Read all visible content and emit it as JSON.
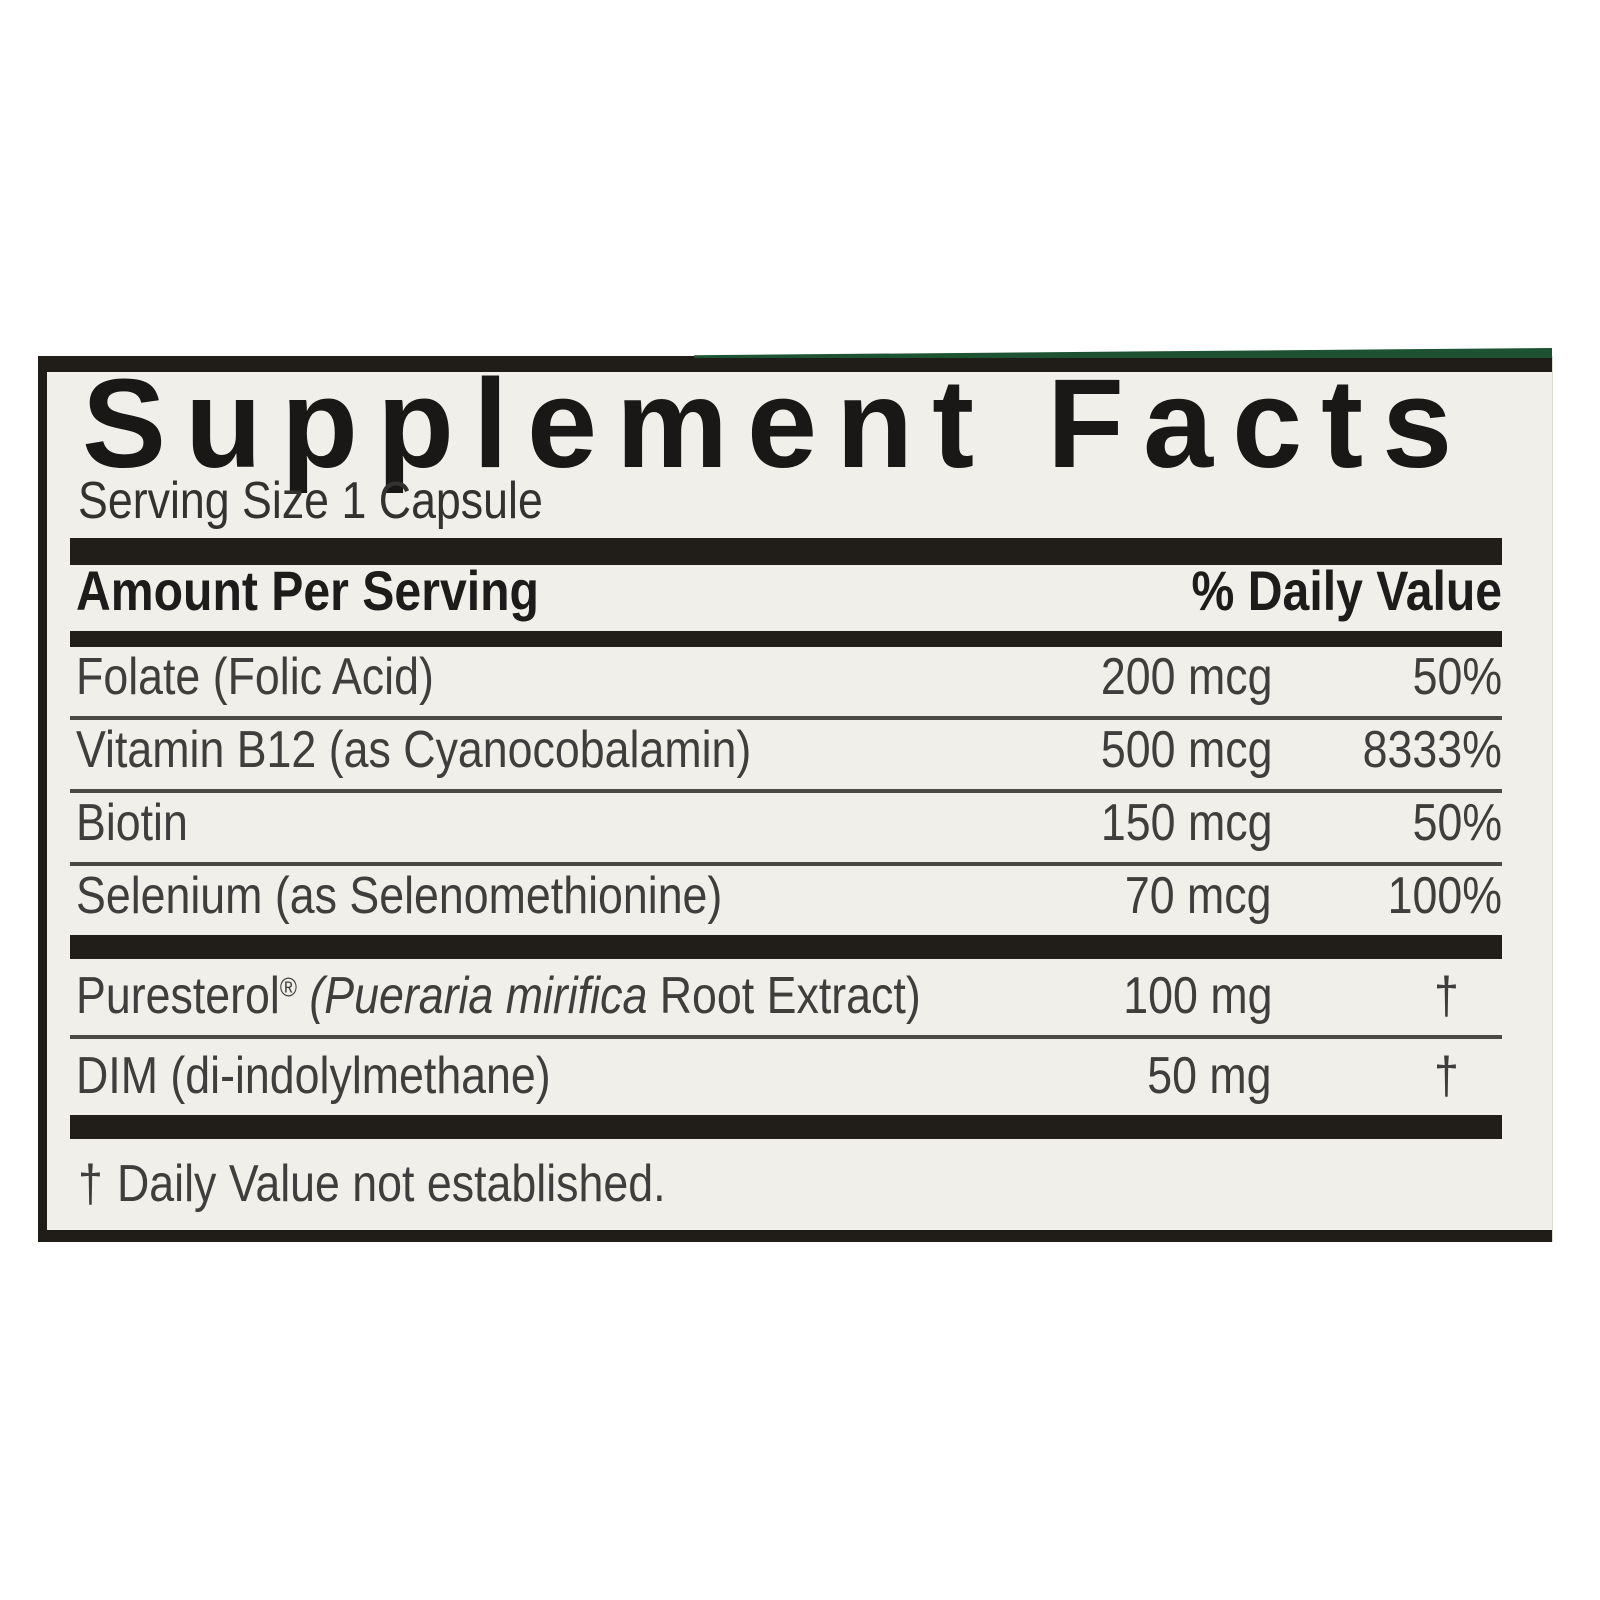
{
  "label": {
    "title": "Supplement Facts",
    "serving_size": "Serving Size 1 Capsule",
    "columns": {
      "amount_header": "Amount Per Serving",
      "dv_header": "% Daily Value"
    },
    "rows": [
      {
        "name": "Folate (Folic Acid)",
        "amount": "200 mcg",
        "dv": "50%"
      },
      {
        "name": "Vitamin B12 (as Cyanocobalamin)",
        "amount": "500 mcg",
        "dv": "8333%"
      },
      {
        "name": "Biotin",
        "amount": "150 mcg",
        "dv": "50%"
      },
      {
        "name": "Selenium (as Selenomethionine)",
        "amount": "70 mcg",
        "dv": "100%"
      },
      {
        "name_brand": "Puresterol",
        "reg_mark": "®",
        "name_italic": " (Pueraria mirifica ",
        "name_rest": "Root Extract)",
        "amount": "100 mg",
        "dv": "†"
      },
      {
        "name": "DIM (di-indolylmethane)",
        "amount": "50 mg",
        "dv": "†"
      }
    ],
    "footnote": {
      "symbol": "†",
      "text": "Daily Value not established."
    },
    "colors": {
      "label_background": "#f1efea",
      "bar_black": "#211d18",
      "body_text": "#3f3e3c",
      "accent_green_strip": "#1d5233"
    }
  }
}
